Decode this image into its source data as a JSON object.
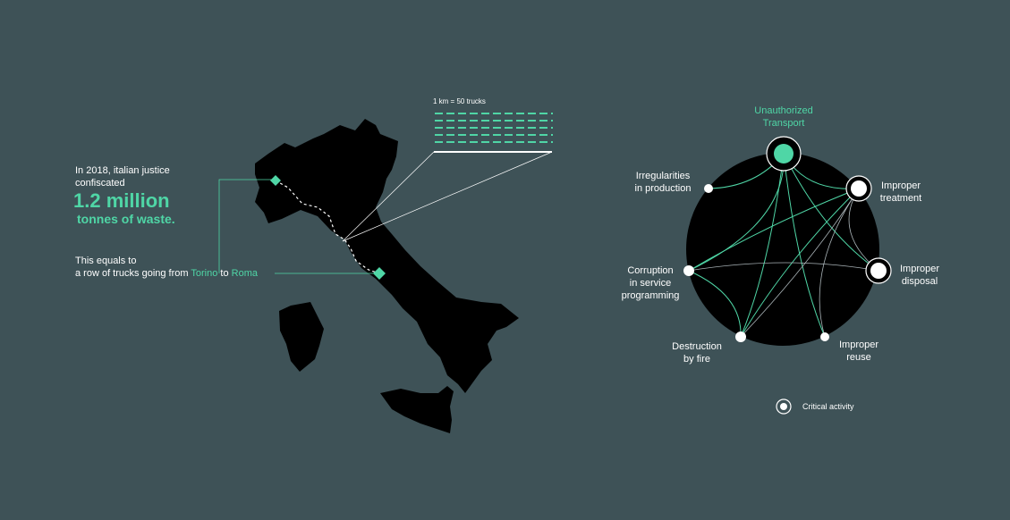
{
  "intro": {
    "line1": "In 2018, italian justice",
    "line2": "confiscated",
    "amount": "1.2 million",
    "unit": "tonnes of waste."
  },
  "equals": {
    "line1": "This equals to",
    "line2_prefix": "a row of trucks going from ",
    "origin": "Torino",
    "connector": " to ",
    "destination": "Roma"
  },
  "scale": {
    "label": "1 km = 50 trucks"
  },
  "network": {
    "nodes": {
      "unauthorized_transport": {
        "line1": "Unauthorized",
        "line2": "Transport"
      },
      "irregularities": {
        "line1": "Irregularities",
        "line2": "in production"
      },
      "improper_treatment": {
        "line1": "Improper",
        "line2": "treatment"
      },
      "improper_disposal": {
        "line1": "Improper",
        "line2": "disposal"
      },
      "corruption": {
        "line1": "Corruption",
        "line2": "in service",
        "line3": "programming"
      },
      "destruction": {
        "line1": "Destruction",
        "line2": "by fire"
      },
      "improper_reuse": {
        "line1": "Improper",
        "line2": "reuse"
      }
    }
  },
  "legend": {
    "label": "Critical activity"
  },
  "colors": {
    "background": "#3e5257",
    "accent": "#4fd6a6",
    "map": "#000000",
    "text": "#ffffff"
  }
}
